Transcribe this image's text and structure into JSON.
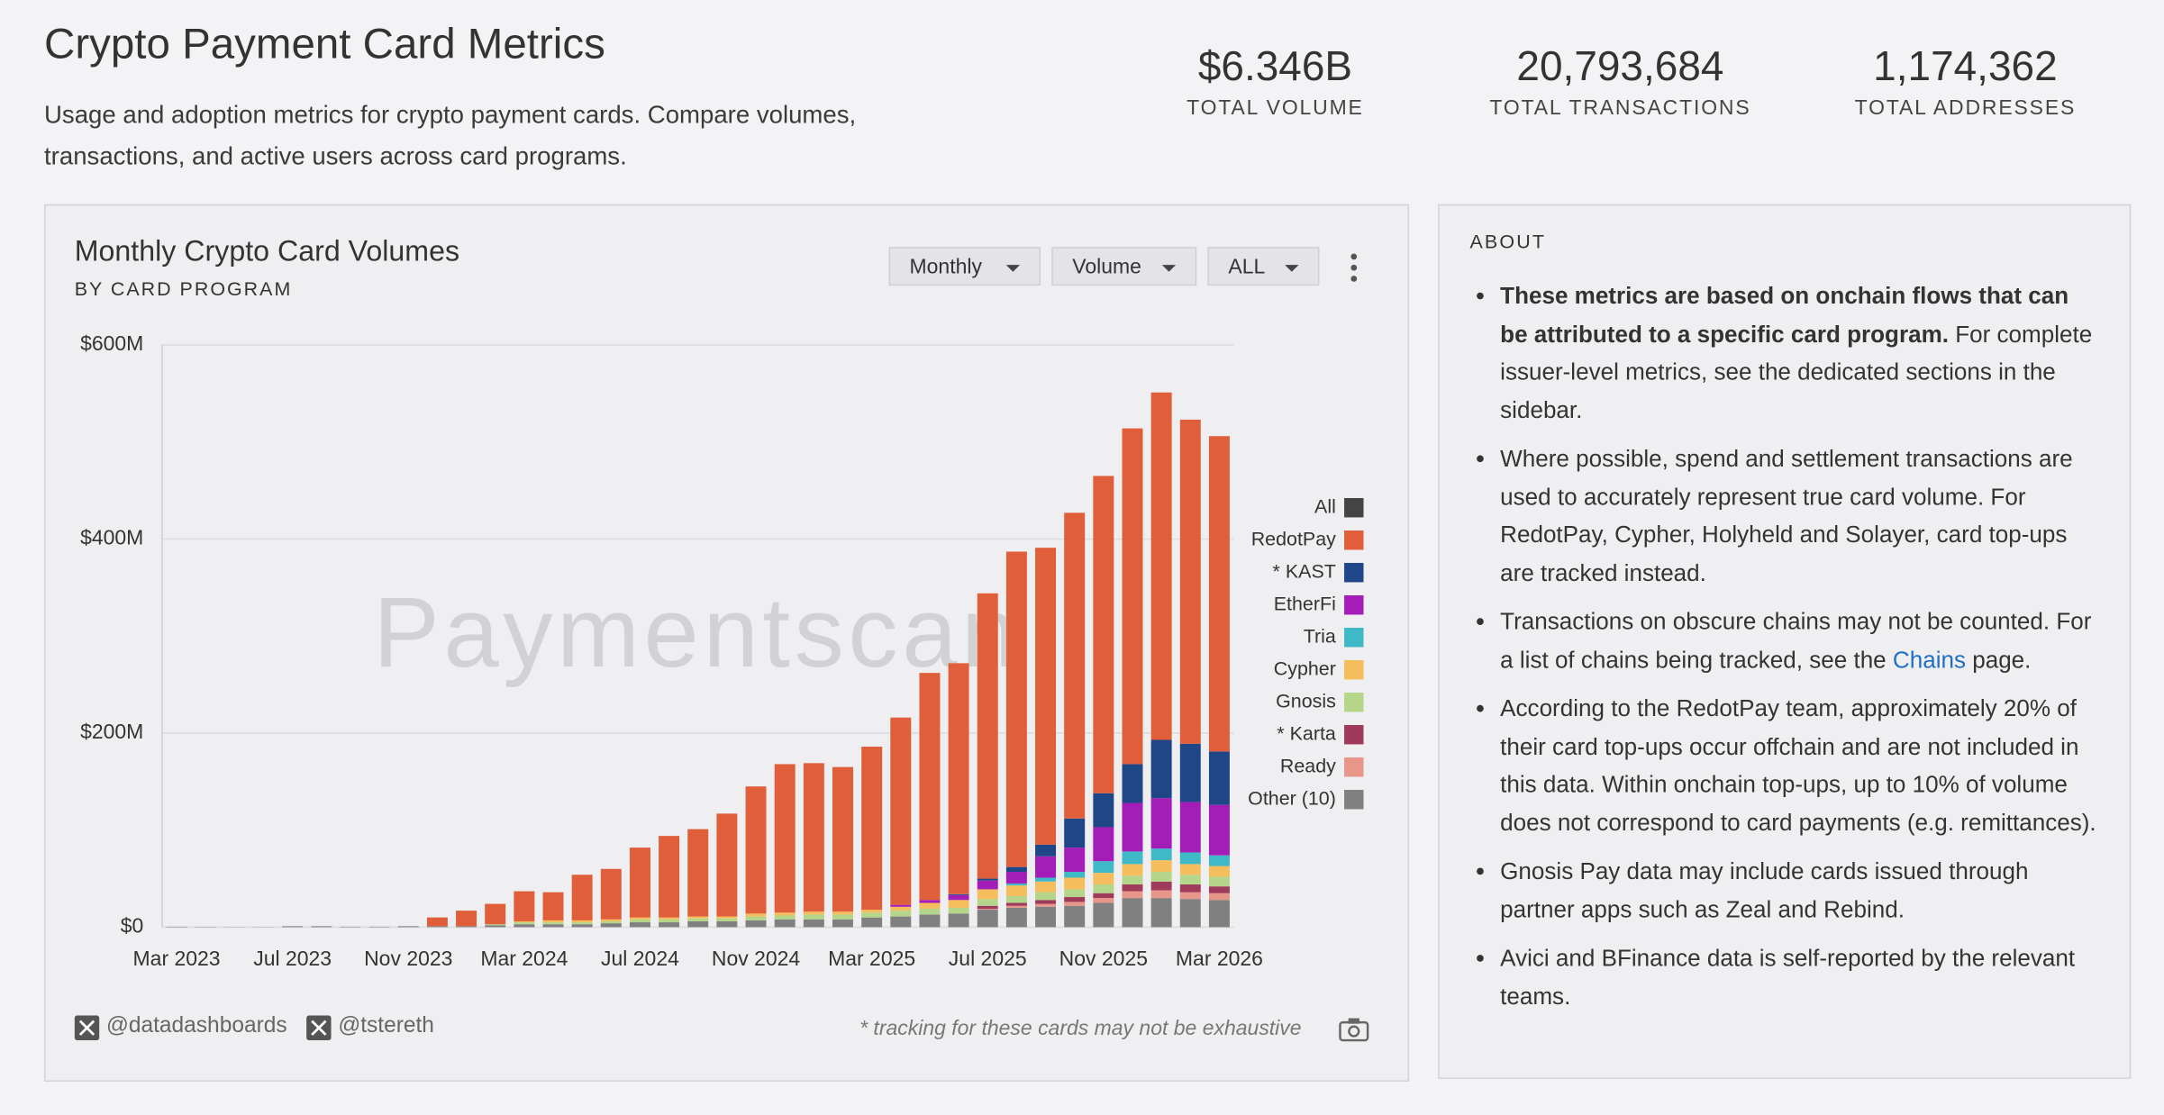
{
  "header": {
    "title": "Crypto Payment Card Metrics",
    "subtitle": "Usage and adoption metrics for crypto payment cards. Compare volumes, transactions, and active users across card programs."
  },
  "stats": [
    {
      "value": "$6.346B",
      "label": "TOTAL VOLUME"
    },
    {
      "value": "20,793,684",
      "label": "TOTAL TRANSACTIONS"
    },
    {
      "value": "1,174,362",
      "label": "TOTAL ADDRESSES"
    }
  ],
  "panel": {
    "title": "Monthly Crypto Card Volumes",
    "subtitle": "BY CARD PROGRAM",
    "controls": [
      "Monthly",
      "Volume",
      "ALL"
    ],
    "watermark": "Paymentscan",
    "handles": [
      "@datadashboards",
      "@tstereth"
    ],
    "note": "* tracking for these cards may not be exhaustive"
  },
  "chart_data": {
    "type": "stacked-bar",
    "categories": [
      "Mar 2023",
      null,
      null,
      null,
      "Jul 2023",
      null,
      null,
      null,
      "Nov 2023",
      null,
      null,
      null,
      "Mar 2024",
      null,
      null,
      null,
      "Jul 2024",
      null,
      null,
      null,
      "Nov 2024",
      null,
      null,
      null,
      "Mar 2025",
      null,
      null,
      null,
      "Jul 2025",
      null,
      null,
      null,
      "Nov 2025",
      null,
      null,
      null,
      "Mar 2026"
    ],
    "ylim": [
      0,
      600
    ],
    "yticks": [
      {
        "value": 0,
        "label": "$0"
      },
      {
        "value": 200,
        "label": "$200M"
      },
      {
        "value": 400,
        "label": "$400M"
      },
      {
        "value": 600,
        "label": "$600M"
      }
    ],
    "grid": true,
    "legend_toggle": {
      "name": "All",
      "color": "#444444"
    },
    "series": [
      {
        "name": "RedotPay",
        "color": "#e05f3a",
        "values": [
          0,
          0,
          0,
          0,
          0,
          0,
          0,
          0,
          0,
          9,
          16,
          21,
          31,
          29,
          47,
          52,
          72,
          84,
          90,
          106,
          131,
          153,
          153,
          149,
          168,
          193,
          234,
          238,
          294,
          325,
          306,
          315,
          327,
          346,
          358,
          334,
          325
        ]
      },
      {
        "name": "* KAST",
        "color": "#1f4788",
        "values": [
          0,
          0,
          0,
          0,
          0,
          0,
          0,
          0,
          0,
          0,
          0,
          0,
          0,
          0,
          0,
          0,
          0,
          0,
          0,
          0,
          0,
          0,
          0,
          0,
          0,
          0,
          0,
          1,
          2,
          5,
          12,
          30,
          35,
          40,
          60,
          60,
          55
        ]
      },
      {
        "name": "EtherFi",
        "color": "#a51db8",
        "values": [
          0,
          0,
          0,
          0,
          0,
          0,
          0,
          0,
          0,
          0,
          0,
          0,
          0,
          0,
          0,
          0,
          0,
          0,
          0,
          0,
          0,
          0,
          0,
          0,
          0,
          2,
          3,
          5,
          9,
          12,
          22,
          25,
          35,
          50,
          52,
          52,
          52
        ]
      },
      {
        "name": "Tria",
        "color": "#3fb8c8",
        "values": [
          0,
          0,
          0,
          0,
          0,
          0,
          0,
          0,
          0,
          0,
          0,
          0,
          0,
          0,
          0,
          0,
          0,
          0,
          0,
          0,
          0,
          0,
          0,
          0,
          0,
          0,
          0,
          0,
          0,
          2,
          4,
          6,
          12,
          13,
          12,
          12,
          11
        ]
      },
      {
        "name": "Cypher",
        "color": "#f5bd5c",
        "values": [
          0,
          0,
          0,
          0,
          0,
          0,
          0,
          0,
          0,
          0,
          0,
          0,
          1,
          2,
          2,
          2,
          2,
          2,
          2,
          2,
          3,
          3,
          3,
          3,
          3,
          4,
          6,
          8,
          10,
          11,
          11,
          12,
          12,
          12,
          12,
          11,
          11
        ]
      },
      {
        "name": "Gnosis",
        "color": "#b5d68a",
        "values": [
          0,
          0,
          0,
          0,
          0,
          0,
          0,
          0,
          0,
          0,
          0,
          1,
          2,
          2,
          2,
          2,
          3,
          3,
          3,
          3,
          4,
          4,
          5,
          5,
          5,
          6,
          6,
          6,
          7,
          7,
          8,
          8,
          9,
          9,
          10,
          10,
          10
        ]
      },
      {
        "name": "* Karta",
        "color": "#a03a5a",
        "values": [
          0,
          0,
          0,
          0,
          0,
          0,
          0,
          0,
          0,
          0,
          0,
          0,
          0,
          0,
          0,
          0,
          0,
          0,
          0,
          0,
          0,
          0,
          0,
          0,
          0,
          0,
          0,
          0,
          3,
          3,
          4,
          5,
          5,
          7,
          9,
          8,
          7
        ]
      },
      {
        "name": "Ready",
        "color": "#e8968a",
        "values": [
          0,
          0,
          0,
          0,
          0,
          0,
          0,
          0,
          0,
          0,
          0,
          0,
          0,
          0,
          0,
          0,
          0,
          0,
          0,
          0,
          0,
          0,
          0,
          0,
          0,
          0,
          0,
          0,
          1,
          2,
          3,
          4,
          5,
          7,
          8,
          7,
          7
        ]
      },
      {
        "name": "Other (10)",
        "color": "#808080",
        "values": [
          0.5,
          0.3,
          0.2,
          0.2,
          1,
          1,
          0.5,
          0.5,
          1,
          1,
          1,
          2,
          3,
          3,
          3,
          4,
          5,
          5,
          6,
          6,
          7,
          8,
          8,
          8,
          10,
          11,
          13,
          14,
          18,
          20,
          21,
          22,
          25,
          30,
          30,
          29,
          28
        ]
      }
    ]
  },
  "about": {
    "title": "ABOUT",
    "items": [
      [
        {
          "kind": "bold",
          "text": "These metrics are based on onchain flows that can be attributed to a specific card program."
        },
        {
          "kind": "plain",
          "text": " For complete issuer-level metrics, see the dedicated sections in the sidebar."
        }
      ],
      [
        {
          "kind": "plain",
          "text": "Where possible, spend and settlement transactions are used to accurately represent true card volume. For RedotPay, Cypher, Holyheld and Solayer, card top-ups are tracked instead."
        }
      ],
      [
        {
          "kind": "plain",
          "text": "Transactions on obscure chains may not be counted. For a list of chains being tracked, see the "
        },
        {
          "kind": "link",
          "text": "Chains"
        },
        {
          "kind": "plain",
          "text": " page."
        }
      ],
      [
        {
          "kind": "plain",
          "text": "According to the RedotPay team, approximately 20% of their card top-ups occur offchain and are not included in this data. Within onchain top-ups, up to 10% of volume does not correspond to card payments (e.g. remittances)."
        }
      ],
      [
        {
          "kind": "plain",
          "text": "Gnosis Pay data may include cards issued through partner apps such as Zeal and Rebind."
        }
      ],
      [
        {
          "kind": "plain",
          "text": "Avici and BFinance data is self-reported by the relevant teams."
        }
      ]
    ]
  }
}
